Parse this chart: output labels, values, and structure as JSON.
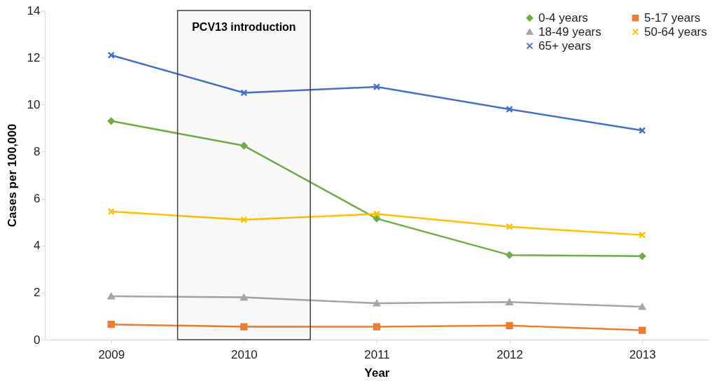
{
  "chart_data": {
    "type": "line",
    "xlabel": "Year",
    "ylabel": "Cases per 100,000",
    "x": [
      2009,
      2010,
      2011,
      2012,
      2013
    ],
    "xlim": [
      2008.5,
      2013.5
    ],
    "xticks": [
      2009,
      2010,
      2011,
      2012,
      2013
    ],
    "ylim": [
      0,
      14
    ],
    "yticks": [
      0,
      2,
      4,
      6,
      8,
      10,
      12,
      14
    ],
    "series": [
      {
        "name": "0-4 years",
        "color": "#70ad47",
        "marker": "diamond",
        "values": [
          9.3,
          8.25,
          5.15,
          3.6,
          3.55
        ]
      },
      {
        "name": "5-17 years",
        "color": "#ed7d31",
        "marker": "square",
        "values": [
          0.65,
          0.55,
          0.55,
          0.6,
          0.4
        ]
      },
      {
        "name": "18-49 years",
        "color": "#a5a5a5",
        "marker": "triangle",
        "values": [
          1.85,
          1.8,
          1.55,
          1.6,
          1.4
        ]
      },
      {
        "name": "50-64 years",
        "color": "#ffc000",
        "marker": "cross",
        "values": [
          5.45,
          5.1,
          5.35,
          4.8,
          4.45
        ]
      },
      {
        "name": "65+ years",
        "color": "#4472c4",
        "marker": "cross",
        "values": [
          12.1,
          10.5,
          10.75,
          9.8,
          8.9
        ]
      }
    ],
    "bands": [
      {
        "axis": "x",
        "from": 2009.5,
        "to": 2010.5,
        "label": "PCV13 introduction",
        "color": "#404040"
      }
    ],
    "grid": false,
    "legend": "top right"
  }
}
